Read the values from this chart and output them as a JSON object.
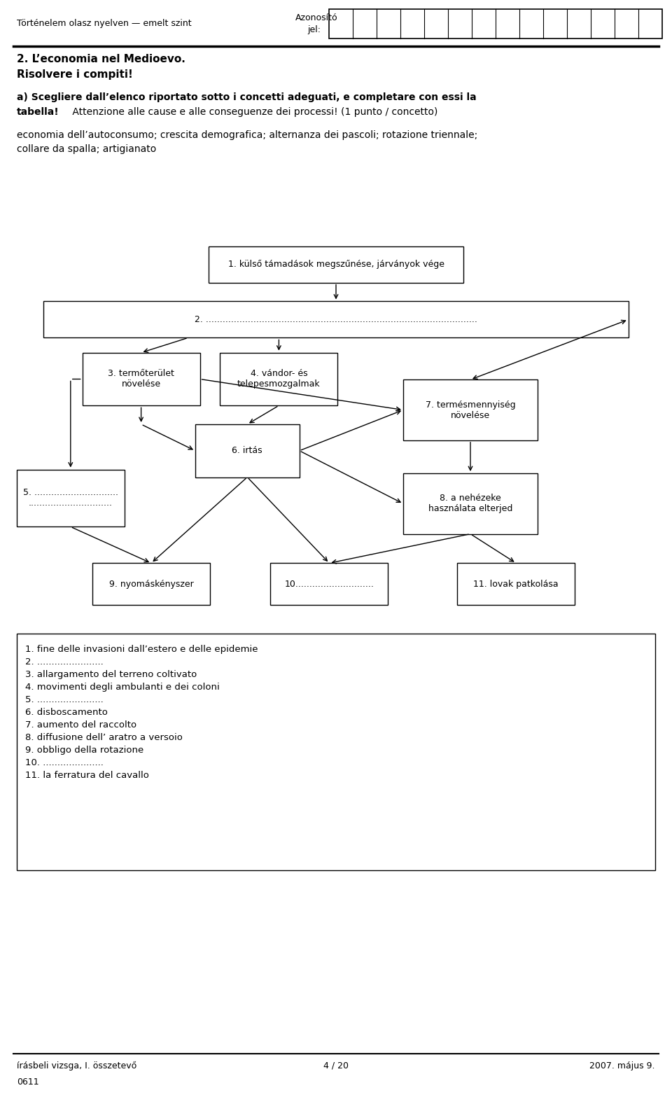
{
  "bg_color": "#ffffff",
  "header_left": "Történelem olasz nyelven — emelt szint",
  "header_right_line1": "Azonosító",
  "header_right_line2": "jel:",
  "id_cols": 14,
  "title_bold": "2. L’economia nel Medioevo.\nRisolvere i compiti!",
  "node1_text": "1. külső támadások megszűnése, járványok vége",
  "node2_text": "2. .................................................................................................",
  "node3_text": "3. termőterület\nnövelése",
  "node4_text": "4. vándor- és\ntelepesmozgalmak",
  "node5_text": "5. ..............................\n..............................",
  "node6_text": "6. irtás",
  "node7_text": "7. termésmennyiség\nnövelése",
  "node8_text": "8. a nehézeke\nhasználata elterjed",
  "node9_text": "9. nyomáskényszer",
  "node10_text": "10............................",
  "node11_text": "11. lovak patkolása",
  "answer_box_text": "1. fine delle invasioni dall’estero e delle epidemie\n2. .......................\n3. allargamento del terreno coltivato\n4. movimenti degli ambulanti e dei coloni\n5. .......................\n6. disboscamento\n7. aumento del raccolto\n8. diffusione dell’ aratro a versoio\n9. obbligo della rotazione\n10. .....................\n11. la ferratura del cavallo",
  "footer_left": "írásbeli vizsga, I. összetevő",
  "footer_center": "4 / 20",
  "footer_right": "2007. május 9.",
  "footer_code": "0611",
  "boxes": {
    "1": [
      0.5,
      0.76,
      0.38,
      0.033
    ],
    "2": [
      0.5,
      0.71,
      0.87,
      0.033
    ],
    "3": [
      0.21,
      0.656,
      0.175,
      0.048
    ],
    "4": [
      0.415,
      0.656,
      0.175,
      0.048
    ],
    "6": [
      0.368,
      0.591,
      0.155,
      0.048
    ],
    "7": [
      0.7,
      0.628,
      0.2,
      0.055
    ],
    "5": [
      0.105,
      0.548,
      0.16,
      0.052
    ],
    "8": [
      0.7,
      0.543,
      0.2,
      0.055
    ],
    "9": [
      0.225,
      0.47,
      0.175,
      0.038
    ],
    "10": [
      0.49,
      0.47,
      0.175,
      0.038
    ],
    "11": [
      0.768,
      0.47,
      0.175,
      0.038
    ]
  },
  "node_texts": {
    "1": "1. külső támadások megszűnése, járványok vége",
    "2": "2. .................................................................................................",
    "3": "3. termőterület\nnövelése",
    "4": "4. vándor- és\ntelepesmozgalmak",
    "5": "5. ..............................\n..............................",
    "6": "6. irtás",
    "7": "7. termésmennyiség\nnövelése",
    "8": "8. a nehézeke\nhasználata elterjed",
    "9": "9. nyomáskényszer",
    "10": "10............................",
    "11": "11. lovak patkolása"
  }
}
